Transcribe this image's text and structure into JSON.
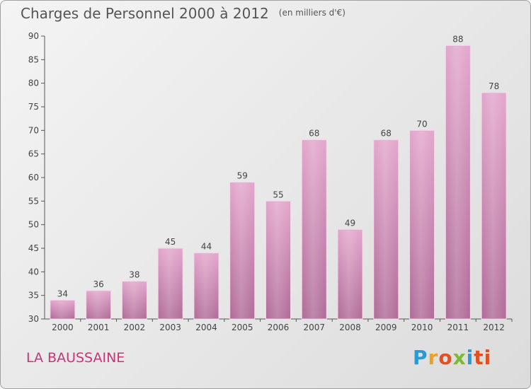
{
  "title": "Charges de Personnel 2000 à 2012",
  "subtitle": "(en milliers d'€)",
  "commune": "LA BAUSSAINE",
  "logo": {
    "text": "Proxiti",
    "letters": [
      "P",
      "r",
      "o",
      "x",
      "i",
      "ti"
    ]
  },
  "colors": {
    "bar_top": "#e3a6cc",
    "bar_bottom": "#b06c98",
    "axis": "#555555",
    "commune": "#cc3377"
  },
  "chart_data": {
    "type": "bar",
    "title": "Charges de Personnel 2000 à 2012",
    "subtitle": "(en milliers d'€)",
    "categories": [
      "2000",
      "2001",
      "2002",
      "2003",
      "2004",
      "2005",
      "2006",
      "2007",
      "2008",
      "2009",
      "2010",
      "2011",
      "2012"
    ],
    "values": [
      34,
      36,
      38,
      45,
      44,
      59,
      55,
      68,
      49,
      68,
      70,
      88,
      78
    ],
    "ylim": [
      30,
      90
    ],
    "yticks": [
      30,
      35,
      40,
      45,
      50,
      55,
      60,
      65,
      70,
      75,
      80,
      85,
      90
    ],
    "grid": false,
    "data_labels": true
  }
}
